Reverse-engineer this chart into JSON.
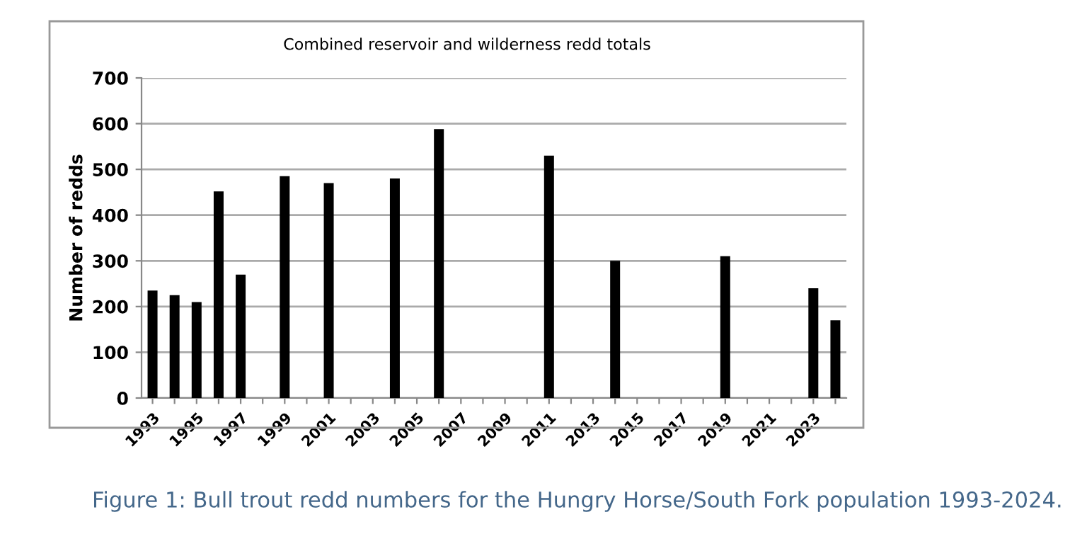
{
  "chart_data": {
    "type": "bar",
    "title": "Combined reservoir and wilderness redd totals",
    "ylabel": "Number of redds",
    "categories": [
      "1993",
      null,
      "1995",
      null,
      "1997",
      null,
      "1999",
      null,
      "2001",
      null,
      "2003",
      null,
      "2005",
      null,
      "2007",
      null,
      "2009",
      null,
      "2011",
      null,
      "2013",
      null,
      "2015",
      null,
      "2017",
      null,
      "2019",
      null,
      "2021",
      null,
      "2023",
      null
    ],
    "values": [
      235,
      225,
      210,
      452,
      270,
      null,
      485,
      null,
      470,
      null,
      null,
      480,
      null,
      588,
      null,
      null,
      null,
      null,
      530,
      null,
      null,
      300,
      null,
      null,
      null,
      null,
      310,
      null,
      null,
      null,
      240,
      170
    ],
    "color": "#000000",
    "ylim": [
      0,
      700
    ],
    "yticks": [
      0,
      100,
      200,
      300,
      400,
      500,
      600,
      700
    ],
    "grid": "y",
    "legend": false,
    "annotations": [
      "Figure 1: Bull trout redd numbers for the Hungry Horse/South Fork population 1993-2024."
    ]
  }
}
